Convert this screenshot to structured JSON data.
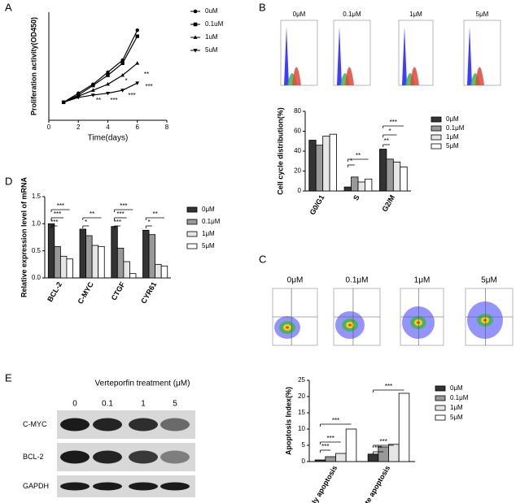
{
  "panel_labels": [
    "A",
    "B",
    "C",
    "D",
    "E"
  ],
  "chart_data": [
    {
      "type": "line",
      "y_label": "Proliferation activity(OD450)",
      "x_label": "Time(days)",
      "x": [
        1,
        2,
        3,
        4,
        5,
        6
      ],
      "xlim": [
        0,
        8
      ],
      "xticks": [
        0,
        2,
        4,
        6,
        8
      ],
      "ylim": [
        0,
        1.8
      ],
      "series": [
        {
          "name": "0uM",
          "color": "#000000",
          "marker": "circle",
          "values": [
            0.3,
            0.45,
            0.6,
            0.8,
            1.0,
            1.5
          ]
        },
        {
          "name": "0.1uM",
          "color": "#000000",
          "marker": "square",
          "values": [
            0.3,
            0.42,
            0.58,
            0.75,
            0.95,
            1.4
          ]
        },
        {
          "name": "1uM",
          "color": "#000000",
          "marker": "triangle-up",
          "values": [
            0.3,
            0.4,
            0.5,
            0.6,
            0.75,
            0.95
          ]
        },
        {
          "name": "5uM",
          "color": "#000000",
          "marker": "triangle-down",
          "values": [
            0.3,
            0.38,
            0.42,
            0.45,
            0.5,
            0.62
          ]
        }
      ],
      "annotations": [
        "*",
        "**",
        "***",
        "**",
        "***",
        "***"
      ]
    },
    {
      "type": "bar",
      "y_label": "Cell cycle distribution(%)",
      "categories": [
        "G0/G1",
        "S",
        "G2/M"
      ],
      "ylim": [
        0,
        80
      ],
      "yticks": [
        0,
        20,
        40,
        60,
        80
      ],
      "series": [
        {
          "name": "0μM",
          "color": "#333333",
          "values": [
            51,
            4,
            42
          ]
        },
        {
          "name": "0.1μM",
          "color": "#999999",
          "values": [
            46,
            14,
            32
          ]
        },
        {
          "name": "1μM",
          "color": "#e6e6e6",
          "values": [
            55,
            9,
            29
          ]
        },
        {
          "name": "5μM",
          "color": "#ffffff",
          "values": [
            57,
            12,
            24
          ]
        }
      ],
      "annotations": [
        "*",
        "**",
        "**",
        "*",
        "***"
      ]
    },
    {
      "type": "bar",
      "y_label": "Relative expression level of mRNA",
      "categories": [
        "BCL-2",
        "C-MYC",
        "CTGF",
        "CYR61"
      ],
      "ylim": [
        0,
        1.5
      ],
      "yticks": [
        {
          "value": 0,
          "label": "0.0"
        },
        0.5,
        {
          "value": 1,
          "label": "1.0"
        },
        1.5
      ],
      "series": [
        {
          "name": "0μM",
          "color": "#333333",
          "values": [
            1.0,
            0.9,
            0.95,
            0.88
          ]
        },
        {
          "name": "0.1μM",
          "color": "#999999",
          "values": [
            0.58,
            0.78,
            0.55,
            0.8
          ]
        },
        {
          "name": "1μM",
          "color": "#e6e6e6",
          "values": [
            0.4,
            0.6,
            0.3,
            0.25
          ]
        },
        {
          "name": "5μM",
          "color": "#ffffff",
          "values": [
            0.35,
            0.58,
            0.08,
            0.22
          ]
        }
      ],
      "annotations": [
        "***",
        "***",
        "***",
        "**",
        "*",
        "***",
        "***",
        "***",
        "**",
        "*"
      ]
    },
    {
      "type": "bar",
      "y_label": "Apoptosis Index(%)",
      "categories": [
        "Early apoptosis",
        "Late apoptosis"
      ],
      "ylim": [
        0,
        25
      ],
      "yticks": [
        0,
        5,
        10,
        15,
        20,
        25
      ],
      "series": [
        {
          "name": "0μM",
          "color": "#333333",
          "values": [
            0.5,
            2.3
          ]
        },
        {
          "name": "0.1μM",
          "color": "#999999",
          "values": [
            1.5,
            4.5
          ]
        },
        {
          "name": "1μM",
          "color": "#e6e6e6",
          "values": [
            2.5,
            5.3
          ]
        },
        {
          "name": "5μM",
          "color": "#ffffff",
          "values": [
            10,
            21
          ]
        }
      ],
      "annotations": [
        "***",
        "***",
        "***",
        "***",
        "***",
        "***"
      ]
    }
  ],
  "flow_cycle": {
    "labels": [
      "0μM",
      "0.1μM",
      "1μM",
      "5μM"
    ]
  },
  "flow_apoptosis": {
    "labels": [
      "0μM",
      "0.1μM",
      "1μM",
      "5μM"
    ]
  },
  "blot": {
    "title": "Verteporfin treatment (μM)",
    "lanes": [
      "0",
      "0.1",
      "1",
      "5"
    ],
    "rows": [
      "C-MYC",
      "BCL-2",
      "GAPDH"
    ]
  }
}
